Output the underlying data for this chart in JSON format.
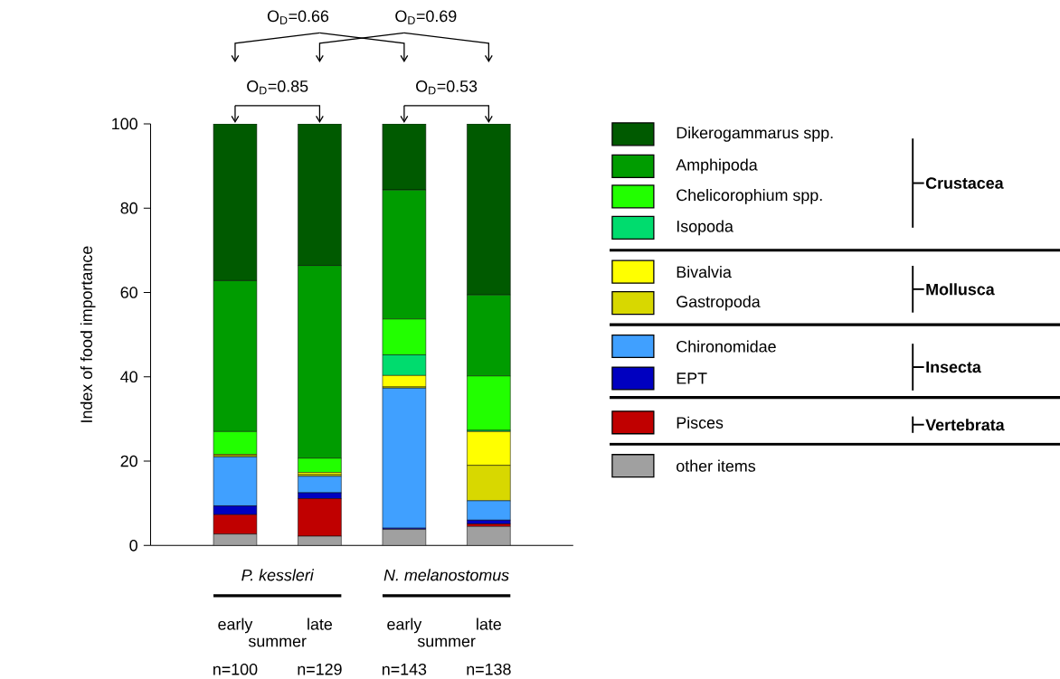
{
  "chart_data": {
    "type": "bar",
    "stacked": true,
    "categories": [
      "early",
      "late",
      "early",
      "late"
    ],
    "series": [
      {
        "name": "other items",
        "color": "#a0a0a0",
        "values": [
          2.7,
          2.2,
          3.8,
          4.5
        ]
      },
      {
        "name": "Pisces",
        "color": "#c00000",
        "values": [
          4.6,
          8.9,
          0,
          0.6
        ]
      },
      {
        "name": "EPT",
        "color": "#0000c0",
        "values": [
          2.1,
          1.4,
          0.3,
          0.9
        ]
      },
      {
        "name": "Chironomidae",
        "color": "#40a0ff",
        "values": [
          11.6,
          3.9,
          33.2,
          4.6
        ]
      },
      {
        "name": "Gastropoda",
        "color": "#d8d800",
        "values": [
          0.3,
          0.4,
          0.3,
          8.4
        ]
      },
      {
        "name": "Bivalvia",
        "color": "#ffff00",
        "values": [
          0.3,
          0.5,
          2.7,
          8.0
        ]
      },
      {
        "name": "Isopoda",
        "color": "#00dc6e",
        "values": [
          0,
          0,
          4.9,
          0.3
        ]
      },
      {
        "name": "Chelicorophium spp.",
        "color": "#22ff00",
        "values": [
          5.4,
          3.4,
          8.5,
          12.9
        ]
      },
      {
        "name": "Amphipoda",
        "color": "#009c00",
        "values": [
          35.8,
          45.7,
          30.6,
          19.2
        ]
      },
      {
        "name": "Dikerogammarus spp.",
        "color": "#005a00",
        "values": [
          37.2,
          33.6,
          15.7,
          40.6
        ]
      }
    ],
    "ylim": [
      0,
      100
    ],
    "yticks": [
      0,
      20,
      40,
      60,
      80,
      100
    ],
    "ylabel": "Index of food importance",
    "legend": "right",
    "annotations": [
      "P. kessleri",
      "N. melanostomus",
      "summer",
      "summer",
      "n=100",
      "n=129",
      "n=143",
      "n=138",
      "O$_{D}$=0.85",
      "O$_{D}$=0.53",
      "O$_{D}$=0.66",
      "O$_{D}$=0.69",
      "Crustacea",
      "Mollusca",
      "Insecta",
      "Vertebrata"
    ]
  }
}
